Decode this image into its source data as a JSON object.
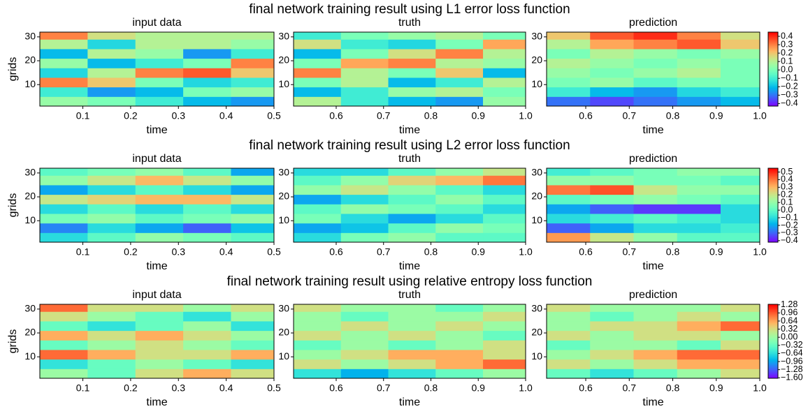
{
  "chart_data": [
    {
      "type": "heatmap",
      "title": "final network training result using L1 error loss function",
      "ylabel": "grids",
      "colormap": "rainbow",
      "colorbar": {
        "clim": [
          -0.43,
          0.45
        ],
        "ticks": [
          0.4,
          0.3,
          0.2,
          0.1,
          {
            "value": 0,
            "label": "0.0"
          },
          {
            "value": -0.1,
            "label": "−0.1"
          },
          {
            "value": -0.2,
            "label": "−0.2"
          },
          {
            "value": -0.3,
            "label": "−0.3"
          },
          {
            "value": -0.4,
            "label": "−0.4"
          }
        ]
      },
      "panels": [
        {
          "subtitle": "input data",
          "xlabel": "time",
          "xlim": [
            0.01,
            0.5
          ],
          "xticks": [
            0.1,
            0.2,
            0.3,
            0.4,
            0.5
          ],
          "ylim": [
            1,
            32
          ],
          "yticks": [
            10,
            20,
            30
          ],
          "x": [
            0.06,
            0.16,
            0.26,
            0.36,
            0.46
          ],
          "y": [
            3,
            7,
            11,
            15,
            19,
            23,
            27,
            31
          ],
          "z": [
            [
              0.05,
              0.0,
              -0.1,
              -0.2,
              -0.25
            ],
            [
              -0.1,
              -0.25,
              -0.2,
              0.0,
              0.05
            ],
            [
              0.3,
              0.2,
              0.0,
              -0.15,
              -0.1
            ],
            [
              -0.15,
              0.1,
              0.3,
              0.35,
              0.2
            ],
            [
              0.05,
              -0.2,
              -0.1,
              0.0,
              0.3
            ],
            [
              -0.2,
              0.1,
              0.05,
              -0.25,
              -0.1
            ],
            [
              0.1,
              -0.15,
              0.1,
              0.1,
              0.05
            ],
            [
              0.3,
              0.15,
              0.1,
              0.1,
              0.1
            ]
          ]
        },
        {
          "subtitle": "truth",
          "xlabel": "time",
          "xlim": [
            0.51,
            1.0
          ],
          "xticks": [
            0.6,
            0.7,
            0.8,
            0.9,
            {
              "value": 1,
              "label": "1.0"
            }
          ],
          "ylim": [
            1,
            32
          ],
          "yticks": [
            10,
            20,
            30
          ],
          "x": [
            0.56,
            0.66,
            0.76,
            0.86,
            0.96
          ],
          "y": [
            3,
            7,
            11,
            15,
            19,
            23,
            27,
            31
          ],
          "z": [
            [
              0.1,
              -0.1,
              -0.2,
              -0.25,
              0.05
            ],
            [
              -0.2,
              -0.1,
              0.05,
              0.1,
              0.0
            ],
            [
              0.0,
              0.1,
              -0.2,
              -0.1,
              0.1
            ],
            [
              0.3,
              0.1,
              0.0,
              0.2,
              -0.2
            ],
            [
              0.0,
              0.25,
              0.3,
              0.1,
              0.05
            ],
            [
              -0.2,
              0.0,
              0.15,
              0.3,
              0.1
            ],
            [
              0.15,
              -0.1,
              -0.15,
              0.0,
              0.25
            ],
            [
              -0.1,
              0.0,
              0.05,
              0.1,
              0.0
            ]
          ]
        },
        {
          "subtitle": "prediction",
          "xlabel": "time",
          "xlim": [
            0.51,
            1.0
          ],
          "xticks": [
            0.6,
            0.7,
            0.8,
            0.9,
            {
              "value": 1,
              "label": "1.0"
            }
          ],
          "ylim": [
            1,
            32
          ],
          "yticks": [
            10,
            20,
            30
          ],
          "x": [
            0.56,
            0.66,
            0.76,
            0.86,
            0.96
          ],
          "y": [
            3,
            7,
            11,
            15,
            19,
            23,
            27,
            31
          ],
          "z": [
            [
              -0.3,
              -0.35,
              -0.3,
              -0.25,
              -0.2
            ],
            [
              -0.1,
              -0.2,
              -0.25,
              -0.15,
              -0.1
            ],
            [
              0.0,
              0.05,
              -0.05,
              0.0,
              0.0
            ],
            [
              0.05,
              0.0,
              0.05,
              0.1,
              0.0
            ],
            [
              0.1,
              0.05,
              0.0,
              0.05,
              0.0
            ],
            [
              0.0,
              0.1,
              0.05,
              0.0,
              0.05
            ],
            [
              0.1,
              0.25,
              0.3,
              0.35,
              0.2
            ],
            [
              0.2,
              0.35,
              0.4,
              0.3,
              0.15
            ]
          ]
        }
      ]
    },
    {
      "type": "heatmap",
      "title": "final network training result using L2 error loss function",
      "ylabel": "grids",
      "colormap": "rainbow",
      "colorbar": {
        "clim": [
          -0.42,
          0.55
        ],
        "ticks": [
          0.5,
          0.4,
          0.3,
          0.2,
          0.1,
          {
            "value": 0,
            "label": "0.0"
          },
          {
            "value": -0.1,
            "label": "−0.1"
          },
          {
            "value": -0.2,
            "label": "−0.2"
          },
          {
            "value": -0.3,
            "label": "−0.3"
          },
          {
            "value": -0.4,
            "label": "−0.4"
          }
        ]
      },
      "panels": [
        {
          "subtitle": "input data",
          "xlabel": "time",
          "xlim": [
            0.01,
            0.5
          ],
          "xticks": [
            0.1,
            0.2,
            0.3,
            0.4,
            0.5
          ],
          "ylim": [
            1,
            32
          ],
          "yticks": [
            10,
            20,
            30
          ],
          "x": [
            0.06,
            0.16,
            0.26,
            0.36,
            0.46
          ],
          "y": [
            3,
            7,
            11,
            15,
            19,
            23,
            27,
            31
          ],
          "z": [
            [
              -0.1,
              0.0,
              0.1,
              0.05,
              0.0
            ],
            [
              -0.25,
              -0.1,
              -0.2,
              -0.3,
              -0.15
            ],
            [
              0.05,
              0.1,
              0.0,
              0.05,
              0.1
            ],
            [
              -0.1,
              0.0,
              -0.1,
              0.0,
              -0.1
            ],
            [
              0.2,
              0.25,
              0.3,
              0.3,
              0.2
            ],
            [
              -0.2,
              -0.1,
              0.0,
              -0.1,
              -0.2
            ],
            [
              0.1,
              0.2,
              0.3,
              0.2,
              0.1
            ],
            [
              0.0,
              0.05,
              0.1,
              0.0,
              -0.2
            ]
          ]
        },
        {
          "subtitle": "truth",
          "xlabel": "time",
          "xlim": [
            0.51,
            1.0
          ],
          "xticks": [
            0.6,
            0.7,
            0.8,
            0.9,
            {
              "value": 1,
              "label": "1.0"
            }
          ],
          "ylim": [
            1,
            32
          ],
          "yticks": [
            10,
            20,
            30
          ],
          "x": [
            0.56,
            0.66,
            0.76,
            0.86,
            0.96
          ],
          "y": [
            3,
            7,
            11,
            15,
            19,
            23,
            27,
            31
          ],
          "z": [
            [
              -0.1,
              0.05,
              0.1,
              0.0,
              0.0
            ],
            [
              -0.2,
              -0.15,
              0.0,
              0.1,
              0.05
            ],
            [
              0.05,
              -0.1,
              -0.2,
              -0.1,
              0.0
            ],
            [
              0.0,
              0.1,
              0.05,
              0.0,
              -0.1
            ],
            [
              -0.2,
              -0.1,
              0.0,
              0.1,
              0.0
            ],
            [
              0.1,
              0.2,
              0.1,
              0.0,
              -0.1
            ],
            [
              0.0,
              0.1,
              0.25,
              0.3,
              0.4
            ],
            [
              -0.1,
              -0.1,
              0.0,
              0.1,
              0.2
            ]
          ]
        },
        {
          "subtitle": "prediction",
          "xlabel": "time",
          "xlim": [
            0.51,
            1.0
          ],
          "xticks": [
            0.6,
            0.7,
            0.8,
            0.9,
            {
              "value": 1,
              "label": "1.0"
            }
          ],
          "ylim": [
            1,
            32
          ],
          "yticks": [
            10,
            20,
            30
          ],
          "x": [
            0.56,
            0.66,
            0.76,
            0.86,
            0.96
          ],
          "y": [
            3,
            7,
            11,
            15,
            19,
            23,
            27,
            31
          ],
          "z": [
            [
              0.35,
              0.2,
              0.1,
              0.0,
              0.0
            ],
            [
              -0.3,
              -0.2,
              -0.1,
              -0.1,
              -0.05
            ],
            [
              -0.1,
              -0.05,
              0.0,
              -0.05,
              -0.1
            ],
            [
              -0.2,
              -0.3,
              -0.35,
              -0.35,
              -0.1
            ],
            [
              0.0,
              0.05,
              0.1,
              0.05,
              0.0
            ],
            [
              0.4,
              0.45,
              0.2,
              0.1,
              0.1
            ],
            [
              0.1,
              0.1,
              0.05,
              0.05,
              0.0
            ],
            [
              -0.05,
              0.0,
              0.05,
              0.1,
              0.1
            ]
          ]
        }
      ]
    },
    {
      "type": "heatmap",
      "title": "final network training result using relative entropy loss function",
      "ylabel": "grids",
      "colormap": "rainbow",
      "colorbar": {
        "clim": [
          -1.62,
          1.3
        ],
        "ticks": [
          1.28,
          0.96,
          0.64,
          0.32,
          {
            "value": 0,
            "label": "0.00"
          },
          {
            "value": -0.32,
            "label": "−0.32"
          },
          {
            "value": -0.64,
            "label": "−0.64"
          },
          {
            "value": -0.96,
            "label": "−0.96"
          },
          {
            "value": -1.28,
            "label": "−1.28"
          },
          {
            "value": -1.6,
            "label": "−1.60"
          }
        ]
      },
      "panels": [
        {
          "subtitle": "input data",
          "xlabel": "time",
          "xlim": [
            0.01,
            0.5
          ],
          "xticks": [
            0.1,
            0.2,
            0.3,
            0.4,
            0.5
          ],
          "ylim": [
            1,
            32
          ],
          "yticks": [
            10,
            20,
            30
          ],
          "x": [
            0.06,
            0.16,
            0.26,
            0.36,
            0.46
          ],
          "y": [
            3,
            7,
            11,
            15,
            19,
            23,
            27,
            31
          ],
          "z": [
            [
              0.0,
              -0.3,
              0.3,
              0.6,
              0.3
            ],
            [
              -0.6,
              -0.3,
              0.0,
              -0.3,
              -0.6
            ],
            [
              0.9,
              0.6,
              0.3,
              0.3,
              0.6
            ],
            [
              -0.3,
              0.0,
              0.3,
              0.0,
              -0.3
            ],
            [
              0.6,
              0.3,
              0.6,
              0.3,
              0.0
            ],
            [
              -0.3,
              -0.6,
              -0.3,
              0.0,
              -0.6
            ],
            [
              0.3,
              0.0,
              -0.3,
              -0.6,
              0.0
            ],
            [
              0.9,
              0.3,
              0.3,
              0.0,
              0.3
            ]
          ]
        },
        {
          "subtitle": "truth",
          "xlabel": "time",
          "xlim": [
            0.51,
            1.0
          ],
          "xticks": [
            0.6,
            0.7,
            0.8,
            0.9,
            {
              "value": 1,
              "label": "1.0"
            }
          ],
          "ylim": [
            1,
            32
          ],
          "yticks": [
            10,
            20,
            30
          ],
          "x": [
            0.56,
            0.66,
            0.76,
            0.86,
            0.96
          ],
          "y": [
            3,
            7,
            11,
            15,
            19,
            23,
            27,
            31
          ],
          "z": [
            [
              -0.6,
              -0.9,
              -0.6,
              -0.3,
              0.0
            ],
            [
              0.3,
              0.0,
              0.3,
              0.6,
              0.9
            ],
            [
              0.0,
              0.3,
              0.6,
              0.6,
              0.3
            ],
            [
              -0.3,
              0.0,
              -0.3,
              0.0,
              0.3
            ],
            [
              0.3,
              0.0,
              0.3,
              0.0,
              -0.3
            ],
            [
              0.0,
              0.3,
              0.0,
              0.3,
              0.0
            ],
            [
              0.0,
              -0.3,
              0.0,
              0.0,
              0.3
            ],
            [
              0.3,
              0.0,
              0.0,
              -0.3,
              0.0
            ]
          ]
        },
        {
          "subtitle": "prediction",
          "xlabel": "time",
          "xlim": [
            0.51,
            1.0
          ],
          "xticks": [
            0.6,
            0.7,
            0.8,
            0.9,
            {
              "value": 1,
              "label": "1.0"
            }
          ],
          "ylim": [
            1,
            32
          ],
          "yticks": [
            10,
            20,
            30
          ],
          "x": [
            0.56,
            0.66,
            0.76,
            0.86,
            0.96
          ],
          "y": [
            3,
            7,
            11,
            15,
            19,
            23,
            27,
            31
          ],
          "z": [
            [
              -0.3,
              -0.6,
              -0.3,
              0.0,
              0.3
            ],
            [
              0.3,
              0.0,
              0.3,
              0.6,
              0.6
            ],
            [
              0.0,
              0.3,
              0.6,
              0.9,
              0.9
            ],
            [
              -0.3,
              0.0,
              0.0,
              -0.3,
              0.3
            ],
            [
              0.3,
              0.0,
              0.3,
              0.3,
              0.0
            ],
            [
              0.0,
              0.3,
              0.3,
              0.6,
              0.9
            ],
            [
              0.0,
              -0.3,
              0.0,
              0.3,
              0.0
            ],
            [
              0.3,
              0.0,
              0.0,
              0.0,
              0.3
            ]
          ]
        }
      ]
    }
  ]
}
